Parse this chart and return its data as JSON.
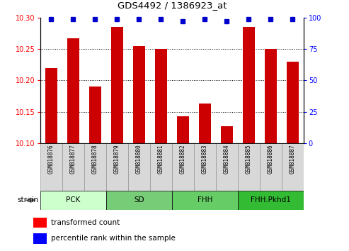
{
  "title": "GDS4492 / 1386923_at",
  "samples": [
    "GSM818876",
    "GSM818877",
    "GSM818878",
    "GSM818879",
    "GSM818880",
    "GSM818881",
    "GSM818882",
    "GSM818883",
    "GSM818884",
    "GSM818885",
    "GSM818886",
    "GSM818887"
  ],
  "bar_values": [
    10.22,
    10.267,
    10.19,
    10.285,
    10.255,
    10.25,
    10.143,
    10.163,
    10.127,
    10.285,
    10.25,
    10.23
  ],
  "percentile_values": [
    99,
    99,
    99,
    99,
    99,
    99,
    97,
    99,
    97,
    99,
    99,
    99
  ],
  "bar_color": "#cc0000",
  "dot_color": "#0000cc",
  "ylim_left": [
    10.1,
    10.3
  ],
  "ylim_right": [
    0,
    100
  ],
  "yticks_left": [
    10.1,
    10.15,
    10.2,
    10.25,
    10.3
  ],
  "yticks_right": [
    0,
    25,
    50,
    75,
    100
  ],
  "groups": [
    {
      "label": "PCK",
      "start": 0,
      "end": 2,
      "color": "#ccffcc"
    },
    {
      "label": "SD",
      "start": 3,
      "end": 5,
      "color": "#66dd66"
    },
    {
      "label": "FHH",
      "start": 6,
      "end": 8,
      "color": "#66dd66"
    },
    {
      "label": "FHH.Pkhd1",
      "start": 9,
      "end": 11,
      "color": "#33cc33"
    }
  ],
  "strain_label": "strain",
  "legend_red": "transformed count",
  "legend_blue": "percentile rank within the sample",
  "bar_width": 0.55,
  "background_color": "#ffffff"
}
